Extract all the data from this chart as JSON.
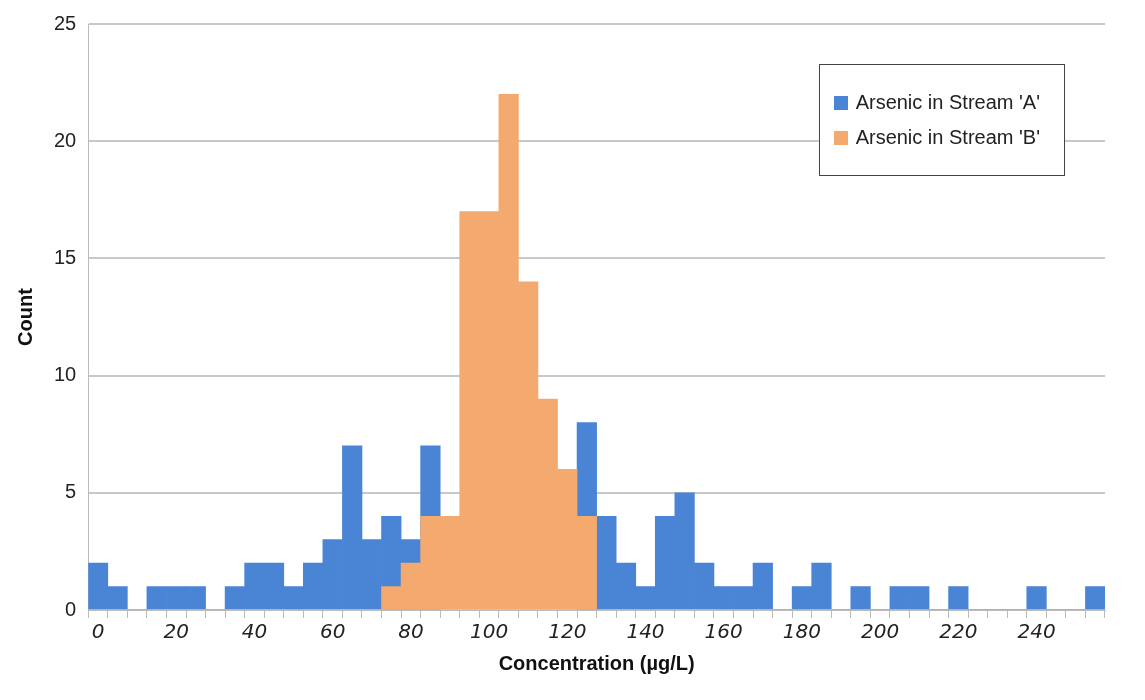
{
  "chart_data": {
    "type": "bar",
    "xlabel": "Concentration (µg/L)",
    "ylabel": "Count",
    "categories": [
      "0",
      null,
      null,
      null,
      "20",
      null,
      null,
      null,
      "40",
      null,
      null,
      null,
      "60",
      null,
      null,
      null,
      "80",
      null,
      null,
      null,
      "100",
      null,
      null,
      null,
      "120",
      null,
      null,
      null,
      "140",
      null,
      null,
      null,
      "160",
      null,
      null,
      null,
      "180",
      null,
      null,
      null,
      "200",
      null,
      null,
      null,
      "220",
      null,
      null,
      null,
      "240",
      null,
      null,
      null
    ],
    "series": [
      {
        "name": "Arsenic in Stream 'A'",
        "color": "#4a84d4",
        "values": [
          2,
          1,
          0,
          1,
          1,
          1,
          0,
          1,
          2,
          2,
          1,
          2,
          3,
          7,
          3,
          4,
          3,
          7,
          null,
          null,
          null,
          null,
          null,
          null,
          null,
          8,
          4,
          2,
          1,
          4,
          5,
          2,
          1,
          1,
          2,
          0,
          1,
          2,
          0,
          1,
          0,
          1,
          1,
          0,
          1,
          0,
          0,
          0,
          1,
          0,
          0,
          1
        ]
      },
      {
        "name": "Arsenic in Stream 'B'",
        "color": "#f4a96e",
        "values": [
          0,
          0,
          0,
          0,
          0,
          0,
          0,
          0,
          0,
          0,
          0,
          0,
          0,
          0,
          0,
          1,
          2,
          4,
          4,
          17,
          17,
          22,
          14,
          9,
          6,
          4,
          0,
          0,
          0,
          0,
          0,
          0,
          0,
          0,
          0,
          0,
          0,
          0,
          0,
          0,
          0,
          0,
          0,
          0,
          0,
          0,
          0,
          0,
          0,
          0,
          0,
          0
        ]
      }
    ],
    "ylim": [
      0,
      25
    ],
    "yticks": [
      0,
      5,
      10,
      15,
      20,
      25
    ],
    "grid": "y",
    "legend": "top right"
  }
}
